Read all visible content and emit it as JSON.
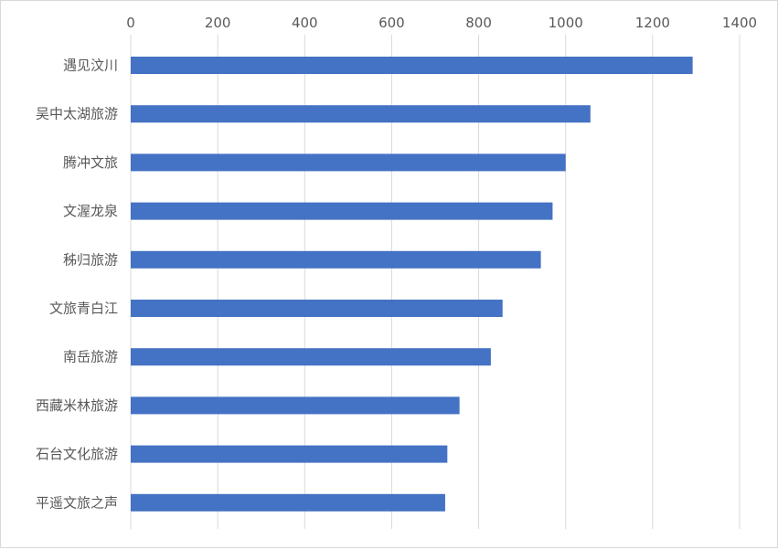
{
  "chart_data": {
    "type": "bar",
    "orientation": "horizontal",
    "categories": [
      "遇见汶川",
      "吴中太湖旅游",
      "腾冲文旅",
      "文渥龙泉",
      "秭归旅游",
      "文旅青白江",
      "南岳旅游",
      "西藏米林旅游",
      "石台文化旅游",
      "平遥文旅之声"
    ],
    "values": [
      1292,
      1057,
      1000,
      970,
      943,
      855,
      828,
      756,
      728,
      723
    ],
    "xlim": [
      0,
      1400
    ],
    "ticks": [
      0,
      200,
      400,
      600,
      800,
      1000,
      1200,
      1400
    ],
    "tick_labels": [
      "0",
      "200",
      "400",
      "600",
      "800",
      "1000",
      "1200",
      "1400"
    ],
    "x_axis_position": "top",
    "grid": true,
    "legend": "none",
    "title": "",
    "xlabel": "",
    "ylabel": "",
    "bar_color": "#4472C4",
    "grid_color": "#d9d9d9"
  }
}
